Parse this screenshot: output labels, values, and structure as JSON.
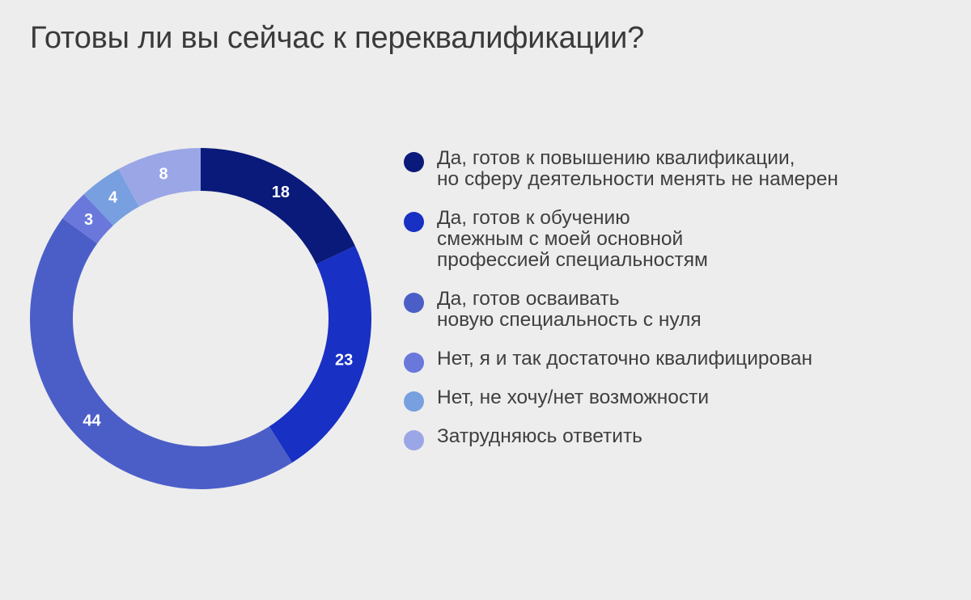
{
  "title": "Готовы ли вы сейчас к переквалификации?",
  "chart_data": {
    "type": "pie",
    "donut": true,
    "title": "Готовы ли вы сейчас к переквалификации?",
    "legend_position": "right",
    "categories": [
      "Да, готов к повышению квалификации,\nно сферу деятельности менять не намерен",
      "Да, готов к обучению\nсмежным с моей основной\nпрофессией специальностям",
      "Да, готов осваивать\nновую специальность с нуля",
      "Нет, я и так достаточно квалифицирован",
      "Нет, не хочу/нет возможности",
      "Затрудняюсь ответить"
    ],
    "values": [
      18,
      23,
      44,
      3,
      4,
      8
    ],
    "labels": [
      "18",
      "23",
      "44",
      "3",
      "4",
      "8"
    ],
    "colors": [
      "#0a1a7a",
      "#1830c4",
      "#4b5ec8",
      "#6a78dc",
      "#789fe0",
      "#9ba6e6"
    ]
  }
}
